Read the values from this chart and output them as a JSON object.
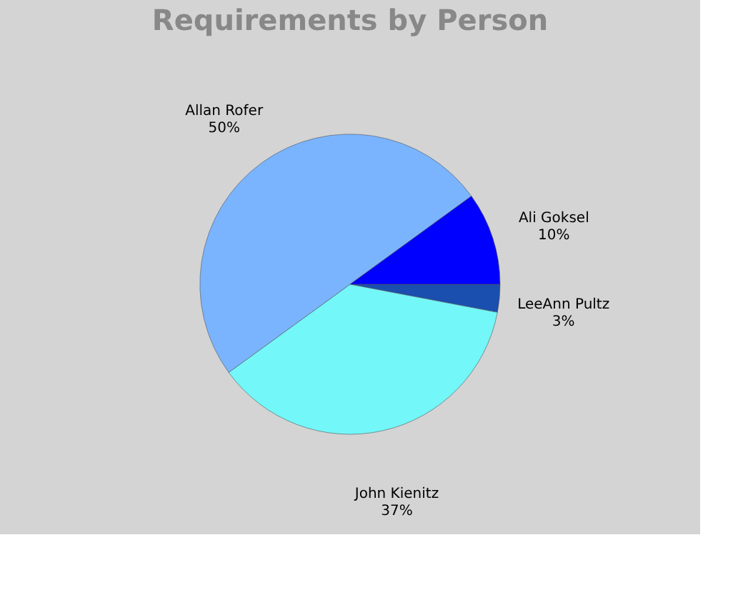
{
  "chart_data": {
    "type": "pie",
    "title": "Requirements by Person",
    "categories": [
      "LeeAnn Pultz",
      "John Kienitz",
      "Allan Rofer",
      "Ali Goksel"
    ],
    "values": [
      3,
      37,
      50,
      10
    ],
    "value_labels": [
      "3%",
      "37%",
      "50%",
      "10%"
    ],
    "colors": [
      "#1a4fb0",
      "#73f7f9",
      "#7ab4ff",
      "#0000ff"
    ],
    "legend": false
  }
}
